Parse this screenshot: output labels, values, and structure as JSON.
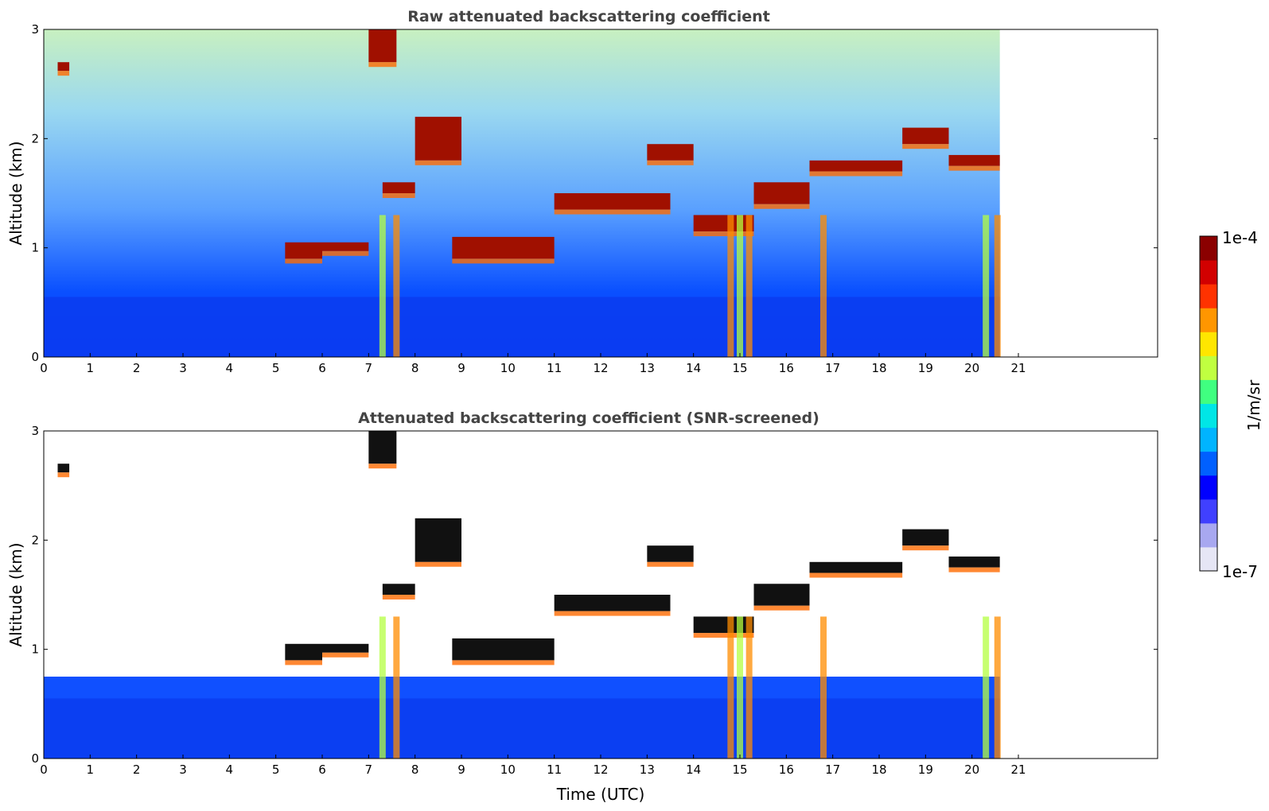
{
  "chart_data": [
    {
      "type": "heatmap",
      "title": "Raw attenuated backscattering coefficient",
      "xlabel": "",
      "ylabel": "Altitude (km)",
      "xlim": [
        0,
        24
      ],
      "ylim": [
        0,
        3
      ],
      "x_ticks": [
        "0",
        "1",
        "2",
        "3",
        "4",
        "5",
        "6",
        "7",
        "8",
        "9",
        "10",
        "11",
        "12",
        "13",
        "14",
        "15",
        "16",
        "17",
        "18",
        "19",
        "20",
        "21"
      ],
      "y_ticks": [
        "0",
        "1",
        "2",
        "3"
      ],
      "data_end_time": 20.6,
      "cloud_layers": [
        {
          "x": [
            0.3,
            0.55
          ],
          "y": [
            2.62,
            2.7
          ]
        },
        {
          "x": [
            5.2,
            6.0
          ],
          "y": [
            0.9,
            1.05
          ]
        },
        {
          "x": [
            6.0,
            7.0
          ],
          "y": [
            0.97,
            1.05
          ]
        },
        {
          "x": [
            7.0,
            7.6
          ],
          "y": [
            2.7,
            3.0
          ]
        },
        {
          "x": [
            7.3,
            8.0
          ],
          "y": [
            1.5,
            1.6
          ]
        },
        {
          "x": [
            8.0,
            9.0
          ],
          "y": [
            1.8,
            2.2
          ]
        },
        {
          "x": [
            8.8,
            11.0
          ],
          "y": [
            0.9,
            1.1
          ]
        },
        {
          "x": [
            11.0,
            13.5
          ],
          "y": [
            1.35,
            1.5
          ]
        },
        {
          "x": [
            13.0,
            14.0
          ],
          "y": [
            1.8,
            1.95
          ]
        },
        {
          "x": [
            14.0,
            15.3
          ],
          "y": [
            1.15,
            1.3
          ]
        },
        {
          "x": [
            15.3,
            16.5
          ],
          "y": [
            1.4,
            1.6
          ]
        },
        {
          "x": [
            16.5,
            18.5
          ],
          "y": [
            1.7,
            1.8
          ]
        },
        {
          "x": [
            18.5,
            19.5
          ],
          "y": [
            1.95,
            2.1
          ]
        },
        {
          "x": [
            19.5,
            20.6
          ],
          "y": [
            1.75,
            1.85
          ]
        }
      ],
      "precipitation_streaks_x": [
        7.3,
        7.6,
        14.8,
        15.0,
        15.2,
        16.8,
        20.3,
        20.55
      ]
    },
    {
      "type": "heatmap",
      "title": "Attenuated backscattering coefficient (SNR-screened)",
      "xlabel": "Time (UTC)",
      "ylabel": "Altitude (km)",
      "xlim": [
        0,
        24
      ],
      "ylim": [
        0,
        3
      ],
      "x_ticks": [
        "0",
        "1",
        "2",
        "3",
        "4",
        "5",
        "6",
        "7",
        "8",
        "9",
        "10",
        "11",
        "12",
        "13",
        "14",
        "15",
        "16",
        "17",
        "18",
        "19",
        "20",
        "21"
      ],
      "y_ticks": [
        "0",
        "1",
        "2",
        "3"
      ],
      "data_end_time": 20.6
    }
  ],
  "colorbar": {
    "label": "1/m/sr",
    "min_label": "1e-7",
    "max_label": "1e-4",
    "scale": "log",
    "colors": [
      "#e6e6f5",
      "#a8a8f0",
      "#4040ff",
      "#0000ff",
      "#0060ff",
      "#00b4ff",
      "#00e6e6",
      "#40ff80",
      "#c0ff40",
      "#ffe600",
      "#ff9600",
      "#ff3200",
      "#d20000",
      "#8b0000"
    ]
  }
}
